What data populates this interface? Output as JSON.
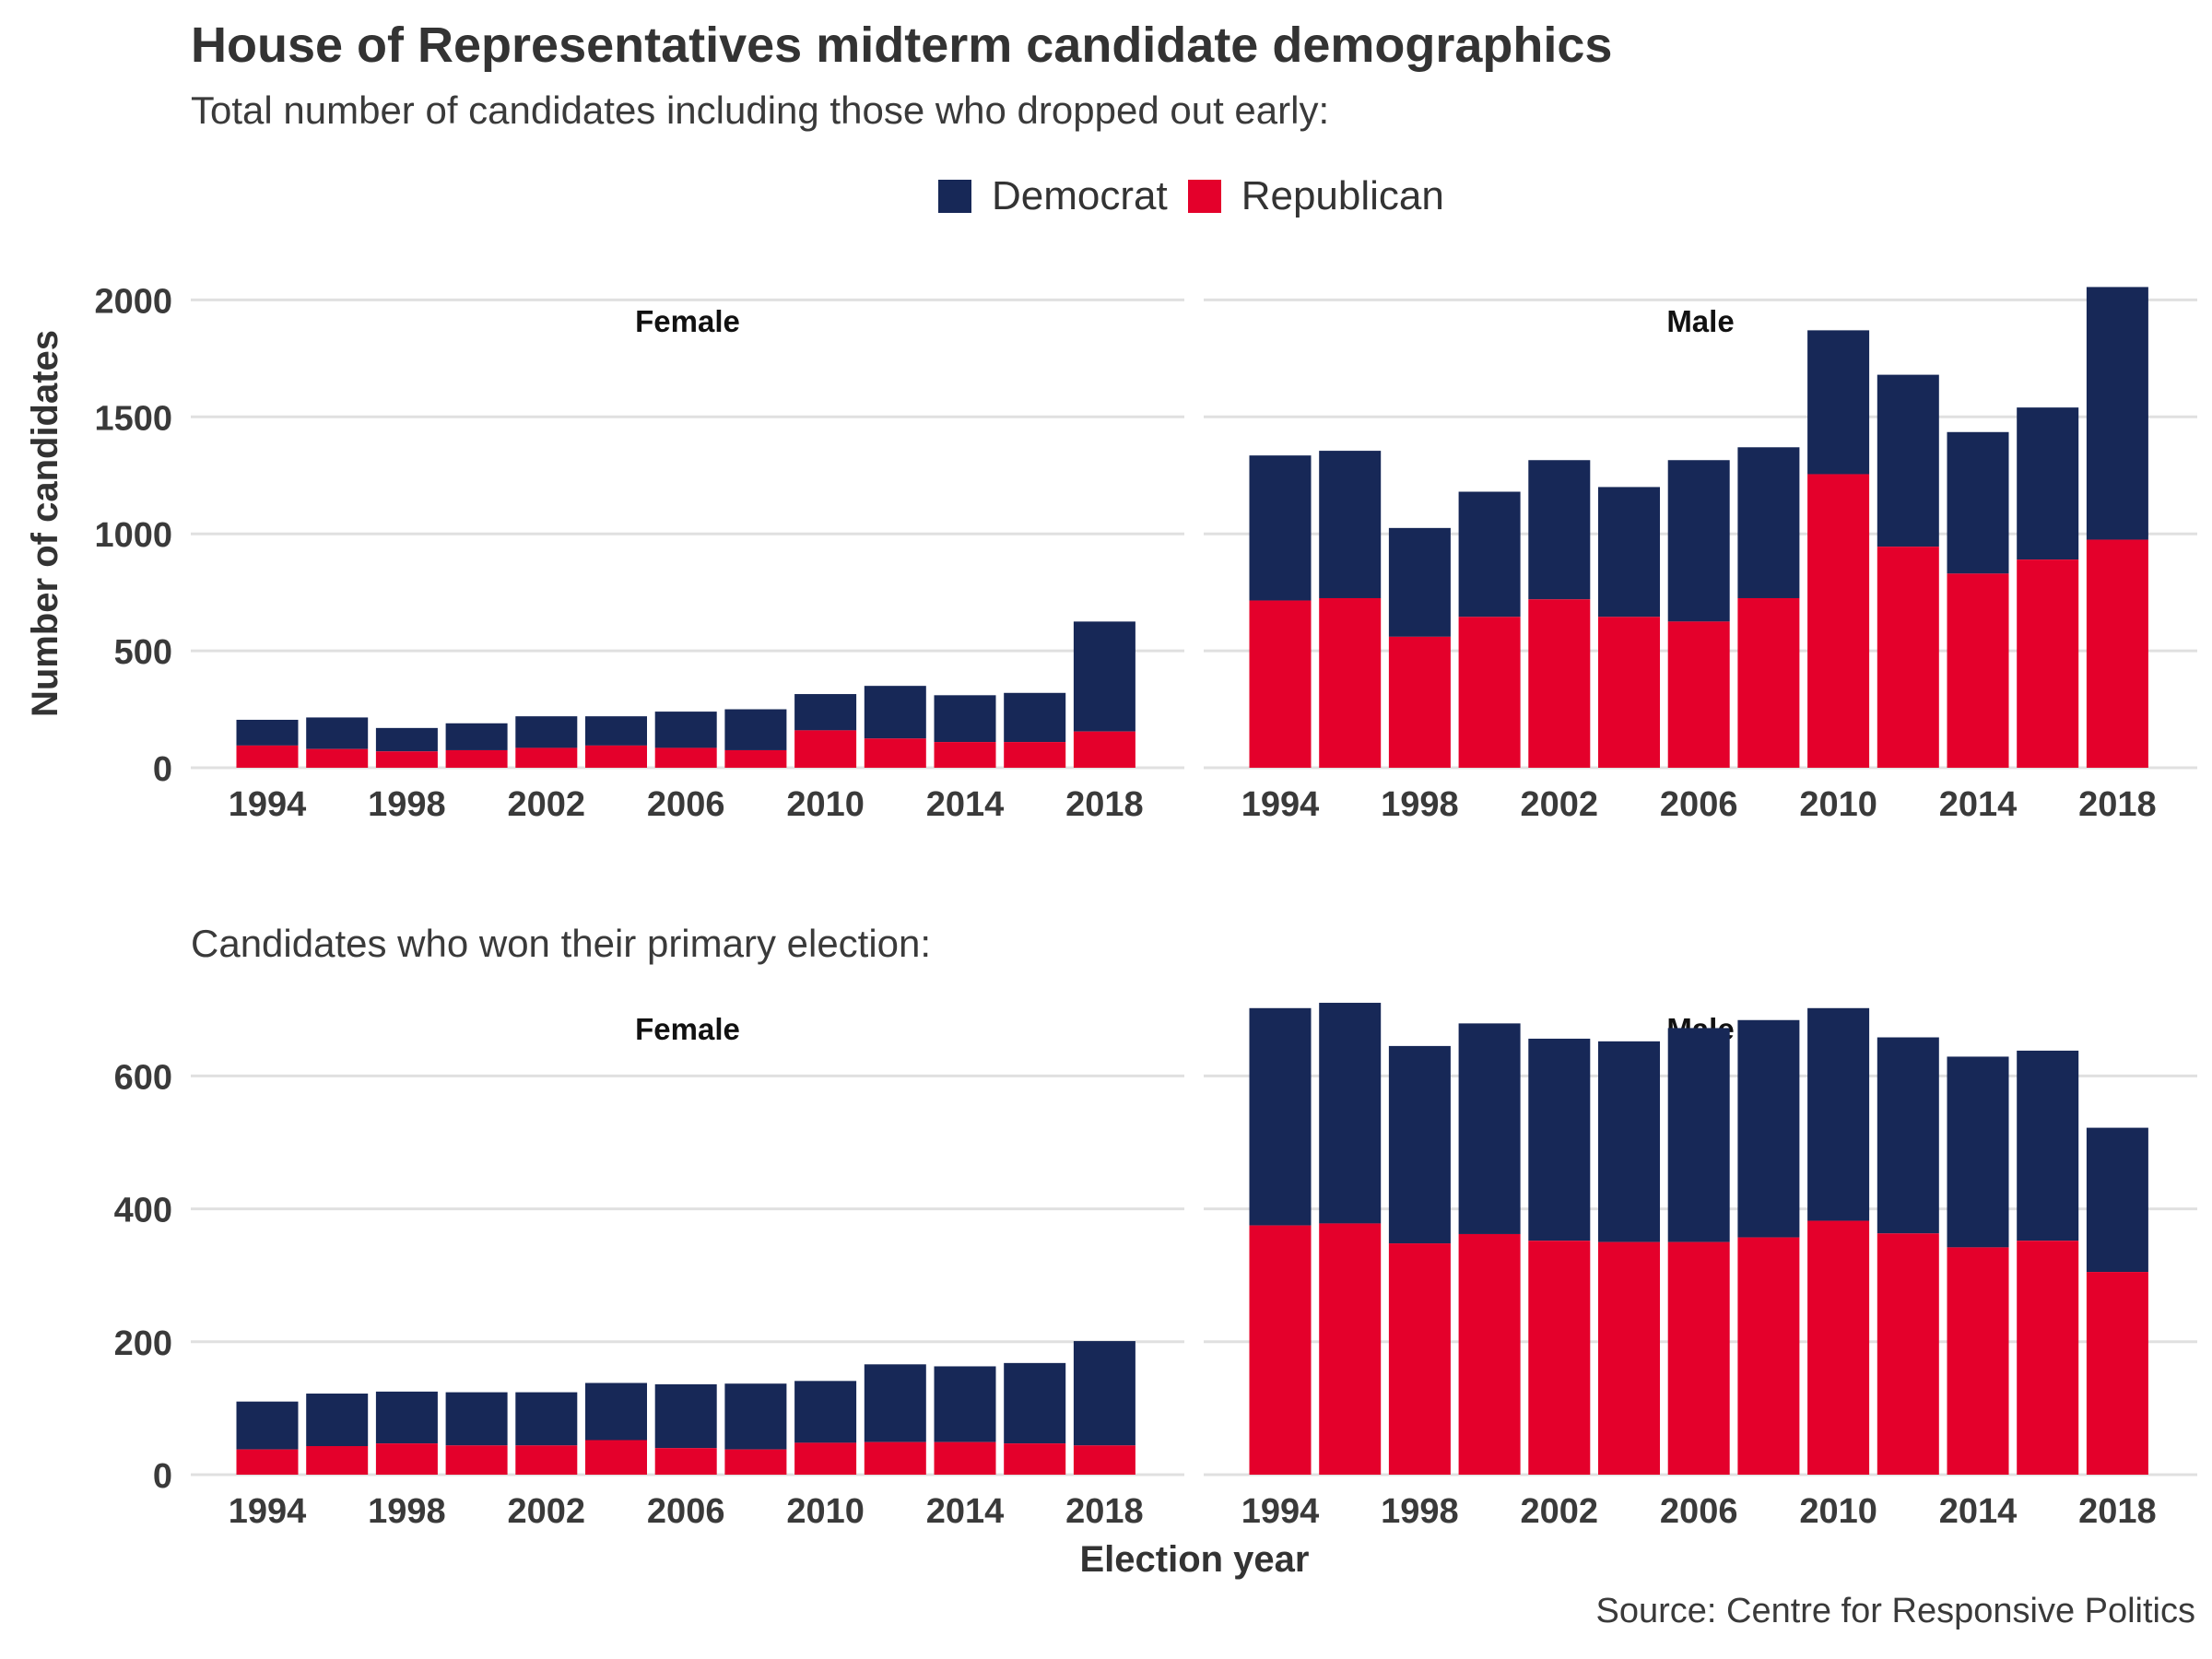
{
  "title": "House of Representatives midterm candidate demographics",
  "subtitle_total": "Total number of candidates including those who dropped out early:",
  "subtitle_primary": "Candidates who won their primary election:",
  "legend": [
    {
      "name": "Democrat",
      "color": "#172857"
    },
    {
      "name": "Republican",
      "color": "#e4002b"
    }
  ],
  "ylabel": "Number of candidates",
  "xlabel": "Election year",
  "source": "Source: Centre for Responsive Politics",
  "colors": {
    "democrat": "#172857",
    "republican": "#e4002b",
    "grid": "#e0e0e0"
  },
  "chart_data": [
    {
      "type": "bar",
      "stacked": true,
      "section": "Total number of candidates including those who dropped out early:",
      "facet": "Female",
      "x": [
        1994,
        1996,
        1998,
        2000,
        2002,
        2004,
        2006,
        2008,
        2010,
        2012,
        2014,
        2016,
        2018
      ],
      "x_ticks": [
        1994,
        1998,
        2002,
        2006,
        2010,
        2014,
        2018
      ],
      "y_ticks": [
        0,
        500,
        1000,
        1500,
        2000
      ],
      "ylim": [
        0,
        2100
      ],
      "series": [
        {
          "name": "Republican",
          "values": [
            95,
            80,
            70,
            75,
            85,
            95,
            85,
            75,
            160,
            125,
            110,
            110,
            155
          ]
        },
        {
          "name": "Democrat",
          "values": [
            110,
            135,
            100,
            115,
            135,
            125,
            155,
            175,
            155,
            225,
            200,
            210,
            470
          ]
        }
      ]
    },
    {
      "type": "bar",
      "stacked": true,
      "section": "Total number of candidates including those who dropped out early:",
      "facet": "Male",
      "x": [
        1994,
        1996,
        1998,
        2000,
        2002,
        2004,
        2006,
        2008,
        2010,
        2012,
        2014,
        2016,
        2018
      ],
      "x_ticks": [
        1994,
        1998,
        2002,
        2006,
        2010,
        2014,
        2018
      ],
      "y_ticks": [
        0,
        500,
        1000,
        1500,
        2000
      ],
      "ylim": [
        0,
        2100
      ],
      "series": [
        {
          "name": "Republican",
          "values": [
            715,
            725,
            560,
            645,
            720,
            645,
            625,
            725,
            1255,
            945,
            830,
            890,
            975
          ]
        },
        {
          "name": "Democrat",
          "values": [
            620,
            630,
            465,
            535,
            595,
            555,
            690,
            645,
            615,
            735,
            605,
            650,
            1080
          ]
        }
      ]
    },
    {
      "type": "bar",
      "stacked": true,
      "section": "Candidates who won their primary election:",
      "facet": "Female",
      "x": [
        1994,
        1996,
        1998,
        2000,
        2002,
        2004,
        2006,
        2008,
        2010,
        2012,
        2014,
        2016,
        2018
      ],
      "x_ticks": [
        1994,
        1998,
        2002,
        2006,
        2010,
        2014,
        2018
      ],
      "y_ticks": [
        0,
        200,
        400,
        600
      ],
      "ylim": [
        0,
        735
      ],
      "series": [
        {
          "name": "Republican",
          "values": [
            38,
            43,
            47,
            44,
            44,
            52,
            40,
            38,
            48,
            49,
            49,
            47,
            44
          ]
        },
        {
          "name": "Democrat",
          "values": [
            72,
            79,
            78,
            80,
            80,
            86,
            96,
            99,
            93,
            117,
            114,
            121,
            157
          ]
        }
      ]
    },
    {
      "type": "bar",
      "stacked": true,
      "section": "Candidates who won their primary election:",
      "facet": "Male",
      "x": [
        1994,
        1996,
        1998,
        2000,
        2002,
        2004,
        2006,
        2008,
        2010,
        2012,
        2014,
        2016,
        2018
      ],
      "x_ticks": [
        1994,
        1998,
        2002,
        2006,
        2010,
        2014,
        2018
      ],
      "y_ticks": [
        0,
        200,
        400,
        600
      ],
      "ylim": [
        0,
        735
      ],
      "series": [
        {
          "name": "Republican",
          "values": [
            375,
            378,
            348,
            362,
            352,
            350,
            350,
            357,
            382,
            363,
            342,
            352,
            305
          ]
        },
        {
          "name": "Democrat",
          "values": [
            327,
            332,
            297,
            317,
            304,
            302,
            322,
            327,
            320,
            295,
            287,
            286,
            217
          ]
        }
      ]
    }
  ]
}
